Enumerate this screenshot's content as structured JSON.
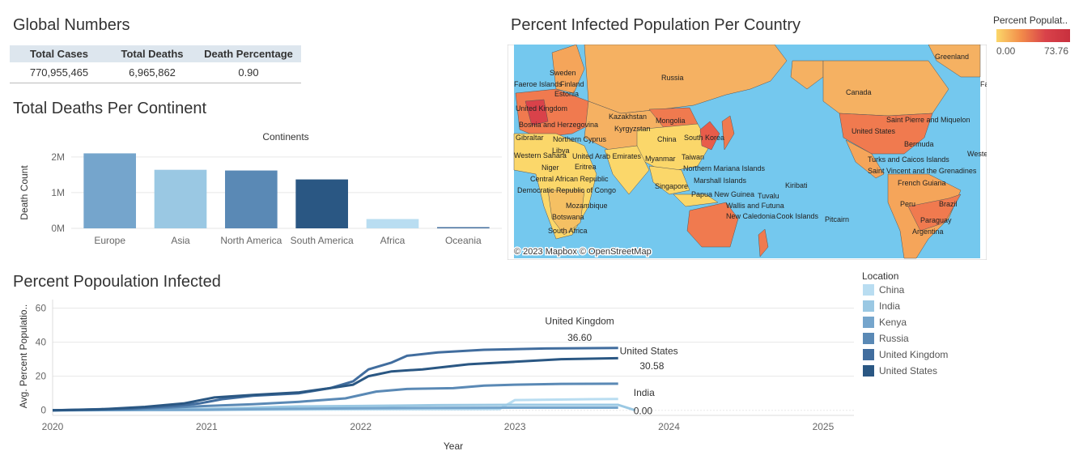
{
  "global": {
    "title": "Global Numbers",
    "headers": [
      "Total Cases",
      "Total Deaths",
      "Death Percentage"
    ],
    "row": [
      "770,955,465",
      "6,965,862",
      "0.90"
    ]
  },
  "continents": {
    "title": "Total Deaths  Per Continent",
    "chart_label": "Continents"
  },
  "map": {
    "title": "Percent Infected Population Per Country",
    "attribution": "© 2023 Mapbox © OpenStreetMap",
    "legend_title": "Percent Populat..",
    "legend_min": "0.00",
    "legend_max": "73.76",
    "labels": [
      "Greenland",
      "Russia",
      "Sweden",
      "Faeroe Islands",
      "Finland",
      "Estonia",
      "United Kingdom",
      "Bosnia and Herzegovina",
      "Kazakhstan",
      "Kyrgyzstan",
      "Mongolia",
      "Gibraltar",
      "Northern Cyprus",
      "Libya",
      "China",
      "South Korea",
      "Western Sahara",
      "United Arab Emirates",
      "Taiwan",
      "Niger",
      "Eritrea",
      "Myanmar",
      "Central African Republic",
      "Democratic Republic of Congo",
      "Northern Mariana Islands",
      "Marshall Islands",
      "Kiribati",
      "Singapore",
      "Papua New Guinea",
      "Tuvalu",
      "Mozambique",
      "Wallis and Futuna",
      "Botswana",
      "New Caledonia",
      "Cook Islands",
      "Pitcairn",
      "South Africa",
      "Canada",
      "United States",
      "Saint Pierre and Miquelon",
      "Bermuda",
      "Turks and Caicos Islands",
      "Saint Vincent and the Grenadines",
      "French Guiana",
      "Peru",
      "Brazil",
      "Paraguay",
      "Argentina",
      "Fae",
      "Wester"
    ]
  },
  "line": {
    "title": "Percent Popoulation Infected",
    "legend_title": "Location",
    "annotations": {
      "uk_name": "United Kingdom",
      "uk_value": "36.60",
      "us_name": "United States",
      "us_value": "30.58",
      "india_name": "India",
      "india_value": "0.00"
    }
  },
  "colors": {
    "China": "#b9ddf1",
    "India": "#9ac8e3",
    "Kenya": "#75a5cc",
    "Russia": "#5a89b5",
    "United Kingdom": "#416d9e",
    "United States": "#2a5783",
    "Europe": "#75a5cc",
    "Asia": "#9ac8e3",
    "North America": "#5a89b5",
    "South America": "#2a5783",
    "Africa": "#b9ddf1",
    "Oceania": "#416d9e"
  },
  "chart_data": [
    {
      "type": "bar",
      "title": "Total Deaths  Per Continent",
      "xlabel": "Continents",
      "ylabel": "Death Count",
      "categories": [
        "Europe",
        "Asia",
        "North America",
        "South America",
        "Africa",
        "Oceania"
      ],
      "values": [
        2100000,
        1640000,
        1620000,
        1370000,
        260000,
        33000
      ],
      "ylim": [
        0,
        2200000
      ],
      "yticks": [
        {
          "v": 0,
          "label": "0M"
        },
        {
          "v": 1000000,
          "label": "1M"
        },
        {
          "v": 2000000,
          "label": "2M"
        }
      ]
    },
    {
      "type": "line",
      "title": "Percent Popoulation Infected",
      "xlabel": "Year",
      "ylabel": "Avg. Percent Populatio..",
      "xlim": [
        2020,
        2025.2
      ],
      "ylim": [
        -3,
        65
      ],
      "xticks": [
        2020,
        2021,
        2022,
        2023,
        2024,
        2025
      ],
      "yticks": [
        0,
        20,
        40,
        60
      ],
      "series": [
        {
          "name": "China",
          "points": [
            [
              2020,
              0
            ],
            [
              2021,
              0.2
            ],
            [
              2022,
              0.5
            ],
            [
              2022.9,
              0.7
            ],
            [
              2023.0,
              6
            ],
            [
              2023.5,
              6.5
            ],
            [
              2023.67,
              6.6
            ]
          ]
        },
        {
          "name": "India",
          "points": [
            [
              2020,
              0
            ],
            [
              2020.5,
              0.3
            ],
            [
              2021,
              0.8
            ],
            [
              2021.3,
              1.5
            ],
            [
              2021.6,
              2.3
            ],
            [
              2022,
              2.5
            ],
            [
              2022.5,
              3.0
            ],
            [
              2023,
              3.2
            ],
            [
              2023.5,
              3.2
            ],
            [
              2023.67,
              3.2
            ],
            [
              2023.78,
              0
            ]
          ]
        },
        {
          "name": "Kenya",
          "points": [
            [
              2020,
              0
            ],
            [
              2021,
              0.3
            ],
            [
              2021.5,
              0.8
            ],
            [
              2022,
              1.2
            ],
            [
              2022.5,
              1.4
            ],
            [
              2023,
              1.5
            ],
            [
              2023.67,
              1.5
            ]
          ]
        },
        {
          "name": "Russia",
          "points": [
            [
              2020,
              0
            ],
            [
              2020.5,
              0.5
            ],
            [
              2021,
              2.5
            ],
            [
              2021.3,
              3.5
            ],
            [
              2021.6,
              5
            ],
            [
              2021.9,
              7
            ],
            [
              2022.1,
              11
            ],
            [
              2022.3,
              12.5
            ],
            [
              2022.6,
              13
            ],
            [
              2022.8,
              14.5
            ],
            [
              2023,
              15
            ],
            [
              2023.3,
              15.5
            ],
            [
              2023.67,
              15.6
            ]
          ]
        },
        {
          "name": "United Kingdom",
          "points": [
            [
              2020,
              0
            ],
            [
              2020.5,
              1
            ],
            [
              2020.8,
              2.5
            ],
            [
              2020.95,
              4
            ],
            [
              2021.1,
              6.5
            ],
            [
              2021.3,
              8.5
            ],
            [
              2021.6,
              10
            ],
            [
              2021.8,
              13
            ],
            [
              2021.95,
              17
            ],
            [
              2022.05,
              24
            ],
            [
              2022.2,
              28
            ],
            [
              2022.3,
              32
            ],
            [
              2022.5,
              34
            ],
            [
              2022.8,
              35.5
            ],
            [
              2023.2,
              36.3
            ],
            [
              2023.67,
              36.6
            ]
          ]
        },
        {
          "name": "United States",
          "points": [
            [
              2020,
              0
            ],
            [
              2020.3,
              0.5
            ],
            [
              2020.6,
              2
            ],
            [
              2020.85,
              4
            ],
            [
              2021.05,
              7.5
            ],
            [
              2021.3,
              9
            ],
            [
              2021.6,
              10.5
            ],
            [
              2021.8,
              13
            ],
            [
              2021.95,
              15
            ],
            [
              2022.05,
              20
            ],
            [
              2022.2,
              22.8
            ],
            [
              2022.4,
              24
            ],
            [
              2022.7,
              27
            ],
            [
              2023,
              28.5
            ],
            [
              2023.3,
              30
            ],
            [
              2023.67,
              30.58
            ]
          ]
        }
      ]
    }
  ]
}
